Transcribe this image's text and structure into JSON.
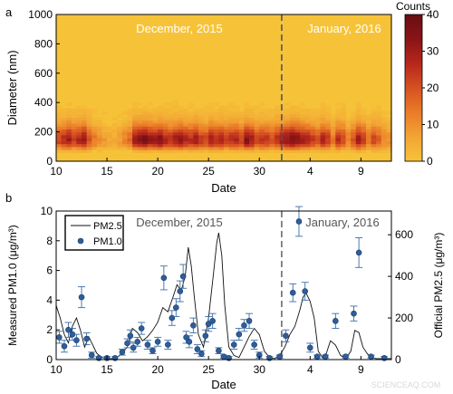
{
  "watermark": "SCIENCEAQ.COM",
  "chart_data": [
    {
      "panel": "a",
      "type": "heatmap",
      "xlabel": "Date",
      "ylabel": "Diameter (nm)",
      "ylim": [
        0,
        1000
      ],
      "yticks": [
        0,
        200,
        400,
        600,
        800,
        1000
      ],
      "x_tick_labels": [
        "10",
        "15",
        "20",
        "25",
        "30",
        "4",
        "9"
      ],
      "x_tick_days": [
        10,
        15,
        20,
        25,
        30,
        35,
        40
      ],
      "xlim_days": [
        10,
        43
      ],
      "month_boundary_day": 32.2,
      "annotations": [
        "December, 2015",
        "January, 2016"
      ],
      "colorbar": {
        "label": "Counts",
        "range": [
          0,
          40
        ],
        "ticks": [
          0,
          10,
          20,
          30,
          40
        ],
        "colors": [
          "#f6c338",
          "#f2a535",
          "#ea7c28",
          "#d65221",
          "#b7281c",
          "#8b1417",
          "#680f14"
        ]
      },
      "columns": [
        {
          "day": 10.0,
          "peak": 22
        },
        {
          "day": 10.5,
          "peak": 26
        },
        {
          "day": 11.0,
          "peak": 30
        },
        {
          "day": 11.5,
          "peak": 24
        },
        {
          "day": 12.0,
          "peak": 28
        },
        {
          "day": 12.5,
          "peak": 32
        },
        {
          "day": 13.0,
          "peak": 20
        },
        {
          "day": 13.5,
          "peak": 14
        },
        {
          "day": 14.0,
          "peak": 10
        },
        {
          "day": 14.5,
          "peak": 8
        },
        {
          "day": 15.0,
          "peak": 6
        },
        {
          "day": 15.5,
          "peak": 5
        },
        {
          "day": 16.0,
          "peak": 8
        },
        {
          "day": 16.5,
          "peak": 12
        },
        {
          "day": 17.0,
          "peak": 16
        },
        {
          "day": 17.5,
          "peak": 30
        },
        {
          "day": 18.0,
          "peak": 34
        },
        {
          "day": 18.5,
          "peak": 36
        },
        {
          "day": 19.0,
          "peak": 32
        },
        {
          "day": 19.5,
          "peak": 30
        },
        {
          "day": 20.0,
          "peak": 34
        },
        {
          "day": 20.5,
          "peak": 28
        },
        {
          "day": 21.0,
          "peak": 26
        },
        {
          "day": 21.5,
          "peak": 30
        },
        {
          "day": 22.0,
          "peak": 32
        },
        {
          "day": 22.5,
          "peak": 28
        },
        {
          "day": 23.0,
          "peak": 26
        },
        {
          "day": 23.5,
          "peak": 30
        },
        {
          "day": 24.0,
          "peak": 24
        },
        {
          "day": 24.5,
          "peak": 22
        },
        {
          "day": 25.0,
          "peak": 30
        },
        {
          "day": 25.5,
          "peak": 26
        },
        {
          "day": 26.0,
          "peak": 28
        },
        {
          "day": 26.5,
          "peak": 24
        },
        {
          "day": 27.0,
          "peak": 26
        },
        {
          "day": 27.5,
          "peak": 28
        },
        {
          "day": 28.0,
          "peak": 22
        },
        {
          "day": 28.5,
          "peak": 34
        },
        {
          "day": 29.0,
          "peak": 30
        },
        {
          "day": 29.5,
          "peak": 22
        },
        {
          "day": 30.0,
          "peak": 26
        },
        {
          "day": 30.5,
          "peak": 24
        },
        {
          "day": 31.0,
          "peak": 20
        },
        {
          "day": 31.5,
          "peak": 26
        },
        {
          "day": 32.0,
          "peak": 30
        },
        {
          "day": 32.5,
          "peak": 32
        },
        {
          "day": 33.0,
          "peak": 36
        },
        {
          "day": 33.5,
          "peak": 34
        },
        {
          "day": 34.0,
          "peak": 30
        },
        {
          "day": 34.5,
          "peak": 28
        },
        {
          "day": 35.0,
          "peak": 24
        },
        {
          "day": 35.5,
          "peak": 20
        },
        {
          "day": 36.0,
          "peak": 28
        },
        {
          "day": 36.5,
          "peak": 24
        },
        {
          "day": 37.0,
          "peak": 14
        },
        {
          "day": 37.5,
          "peak": 26
        },
        {
          "day": 38.0,
          "peak": 22
        },
        {
          "day": 38.5,
          "peak": 12
        },
        {
          "day": 39.0,
          "peak": 20
        },
        {
          "day": 39.5,
          "peak": 30
        },
        {
          "day": 40.0,
          "peak": 24
        },
        {
          "day": 40.5,
          "peak": 14
        },
        {
          "day": 41.0,
          "peak": 22
        },
        {
          "day": 41.5,
          "peak": 18
        },
        {
          "day": 42.0,
          "peak": 12
        },
        {
          "day": 42.5,
          "peak": 10
        }
      ]
    },
    {
      "panel": "b",
      "type": "line",
      "xlabel": "Date",
      "ylabel_left": "Measured PM1.0 (μg/m³)",
      "ylabel_right": "Official PM2.5 (μg/m³)",
      "ylim_left": [
        0,
        10
      ],
      "yticks_left": [
        0,
        2,
        4,
        6,
        8,
        10
      ],
      "ylim_right": [
        0,
        714
      ],
      "yticks_right": [
        0,
        200,
        400,
        600
      ],
      "x_tick_labels": [
        "10",
        "15",
        "20",
        "25",
        "30",
        "4",
        "9"
      ],
      "x_tick_days": [
        10,
        15,
        20,
        25,
        30,
        35,
        40
      ],
      "xlim_days": [
        10,
        43
      ],
      "month_boundary_day": 32.2,
      "annotations": [
        "December, 2015",
        "January, 2016"
      ],
      "legend": {
        "placement": "top-left",
        "entries": [
          "PM2.5",
          "PM1.0"
        ]
      },
      "series": [
        {
          "name": "PM2.5",
          "axis": "right",
          "points": [
            [
              10.0,
              260
            ],
            [
              10.4,
              200
            ],
            [
              10.8,
              120
            ],
            [
              11.2,
              80
            ],
            [
              11.6,
              160
            ],
            [
              12.0,
              200
            ],
            [
              12.4,
              140
            ],
            [
              12.8,
              60
            ],
            [
              13.2,
              110
            ],
            [
              13.6,
              70
            ],
            [
              14.0,
              30
            ],
            [
              14.5,
              10
            ],
            [
              15.0,
              5
            ],
            [
              15.5,
              5
            ],
            [
              16.0,
              10
            ],
            [
              16.5,
              30
            ],
            [
              17.0,
              60
            ],
            [
              17.5,
              150
            ],
            [
              18.0,
              130
            ],
            [
              18.5,
              90
            ],
            [
              19.0,
              110
            ],
            [
              19.5,
              140
            ],
            [
              20.0,
              180
            ],
            [
              20.5,
              250
            ],
            [
              21.0,
              230
            ],
            [
              21.5,
              300
            ],
            [
              21.9,
              360
            ],
            [
              22.3,
              330
            ],
            [
              22.7,
              400
            ],
            [
              23.0,
              540
            ],
            [
              23.3,
              450
            ],
            [
              23.6,
              300
            ],
            [
              24.0,
              120
            ],
            [
              24.5,
              60
            ],
            [
              25.0,
              200
            ],
            [
              25.5,
              420
            ],
            [
              25.8,
              560
            ],
            [
              26.0,
              610
            ],
            [
              26.3,
              500
            ],
            [
              26.6,
              260
            ],
            [
              27.0,
              60
            ],
            [
              27.5,
              20
            ],
            [
              28.0,
              10
            ],
            [
              28.5,
              60
            ],
            [
              29.0,
              110
            ],
            [
              29.5,
              150
            ],
            [
              30.0,
              120
            ],
            [
              30.5,
              40
            ],
            [
              31.0,
              10
            ],
            [
              31.5,
              5
            ],
            [
              32.0,
              20
            ],
            [
              32.5,
              60
            ],
            [
              33.0,
              120
            ],
            [
              33.5,
              160
            ],
            [
              34.0,
              240
            ],
            [
              34.3,
              300
            ],
            [
              34.6,
              320
            ],
            [
              35.0,
              280
            ],
            [
              35.4,
              200
            ],
            [
              35.8,
              40
            ],
            [
              36.2,
              10
            ],
            [
              36.6,
              30
            ],
            [
              37.0,
              90
            ],
            [
              37.5,
              70
            ],
            [
              38.0,
              20
            ],
            [
              38.5,
              5
            ],
            [
              39.0,
              40
            ],
            [
              39.4,
              140
            ],
            [
              39.8,
              130
            ],
            [
              40.2,
              60
            ],
            [
              40.6,
              30
            ],
            [
              41.0,
              10
            ],
            [
              41.5,
              5
            ],
            [
              42.0,
              5
            ],
            [
              42.5,
              5
            ],
            [
              43.0,
              5
            ]
          ]
        },
        {
          "name": "PM1.0",
          "axis": "left",
          "points": [
            [
              10.3,
              1.5,
              0.4
            ],
            [
              10.8,
              0.9,
              0.4
            ],
            [
              11.2,
              2.0,
              0.5
            ],
            [
              11.6,
              1.7,
              0.4
            ],
            [
              12.0,
              1.3,
              0.4
            ],
            [
              12.5,
              4.2,
              0.7
            ],
            [
              13.0,
              1.4,
              0.4
            ],
            [
              13.5,
              0.3,
              0.2
            ],
            [
              14.2,
              0.1,
              0.1
            ],
            [
              15.0,
              0.1,
              0.1
            ],
            [
              15.8,
              0.1,
              0.1
            ],
            [
              16.5,
              0.5,
              0.2
            ],
            [
              17.0,
              1.1,
              0.3
            ],
            [
              17.3,
              1.6,
              0.4
            ],
            [
              17.6,
              0.8,
              0.3
            ],
            [
              18.0,
              1.2,
              0.3
            ],
            [
              18.4,
              2.1,
              0.4
            ],
            [
              19.0,
              1.0,
              0.3
            ],
            [
              19.5,
              0.6,
              0.2
            ],
            [
              20.0,
              1.2,
              0.3
            ],
            [
              20.6,
              5.5,
              0.8
            ],
            [
              21.0,
              1.0,
              0.3
            ],
            [
              21.4,
              2.8,
              0.5
            ],
            [
              21.8,
              3.5,
              0.6
            ],
            [
              22.2,
              4.6,
              0.7
            ],
            [
              22.5,
              5.6,
              0.8
            ],
            [
              22.8,
              1.5,
              0.4
            ],
            [
              23.1,
              1.2,
              0.4
            ],
            [
              23.5,
              2.3,
              0.5
            ],
            [
              23.9,
              0.7,
              0.3
            ],
            [
              24.3,
              0.4,
              0.2
            ],
            [
              24.7,
              1.6,
              0.4
            ],
            [
              25.0,
              2.4,
              0.5
            ],
            [
              25.4,
              2.6,
              0.5
            ],
            [
              26.0,
              0.6,
              0.2
            ],
            [
              26.5,
              0.2,
              0.1
            ],
            [
              27.0,
              0.1,
              0.1
            ],
            [
              27.5,
              1.0,
              0.3
            ],
            [
              28.0,
              1.7,
              0.4
            ],
            [
              28.5,
              2.3,
              0.4
            ],
            [
              29.0,
              2.6,
              0.5
            ],
            [
              29.5,
              1.0,
              0.3
            ],
            [
              30.0,
              0.3,
              0.2
            ],
            [
              31.0,
              0.1,
              0.1
            ],
            [
              32.0,
              0.2,
              0.1
            ],
            [
              32.6,
              1.6,
              0.4
            ],
            [
              33.3,
              4.5,
              0.6
            ],
            [
              33.9,
              9.3,
              1.0
            ],
            [
              34.5,
              4.6,
              0.6
            ],
            [
              35.0,
              0.8,
              0.3
            ],
            [
              35.7,
              0.2,
              0.1
            ],
            [
              36.5,
              0.2,
              0.1
            ],
            [
              37.5,
              2.6,
              0.5
            ],
            [
              38.5,
              0.2,
              0.1
            ],
            [
              39.3,
              3.1,
              0.5
            ],
            [
              39.8,
              7.2,
              1.0
            ],
            [
              41.0,
              0.2,
              0.1
            ],
            [
              42.3,
              0.1,
              0.1
            ]
          ]
        }
      ]
    }
  ]
}
